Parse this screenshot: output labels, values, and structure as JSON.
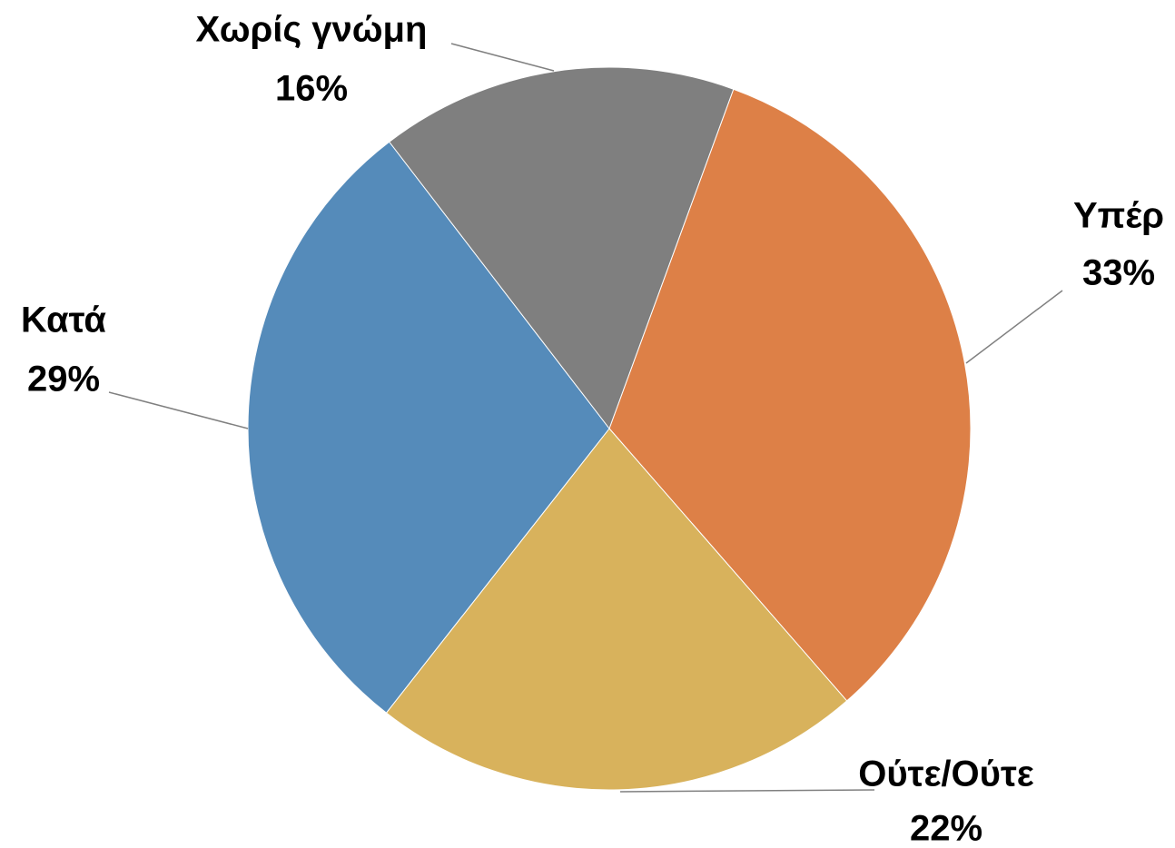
{
  "chart_data": {
    "type": "pie",
    "categories": [
      "Υπέρ",
      "Ούτε/Ούτε",
      "Κατά",
      "Χωρίς γνώμη"
    ],
    "values": [
      33,
      22,
      29,
      16
    ],
    "value_labels": [
      "33%",
      "22%",
      "29%",
      "16%"
    ],
    "colors": [
      "#dd8047",
      "#d8b25c",
      "#558bba",
      "#7f7f7f"
    ]
  }
}
